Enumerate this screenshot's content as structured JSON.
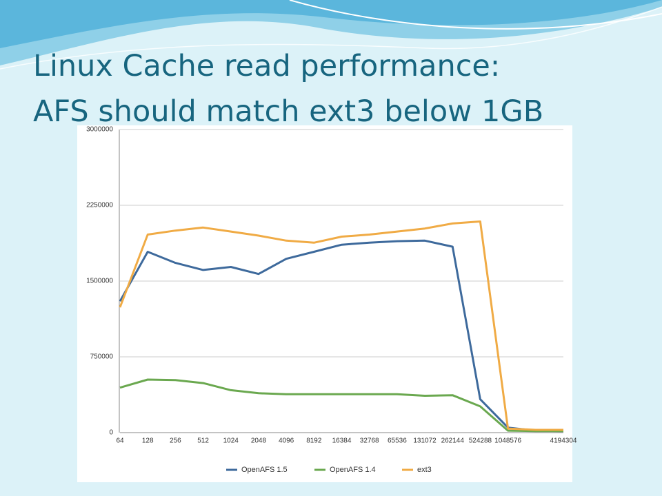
{
  "chart_data": {
    "type": "line",
    "title": [
      "Linux Cache read performance:",
      "AFS should match ext3 below 1GB"
    ],
    "categories": [
      "64",
      "128",
      "256",
      "512",
      "1024",
      "2048",
      "4096",
      "8192",
      "16384",
      "32768",
      "65536",
      "131072",
      "262144",
      "524288",
      "1048576",
      null,
      "4194304"
    ],
    "series": [
      {
        "name": "OpenAFS 1.5",
        "color": "#3e6a9c",
        "values": [
          1300000,
          1790000,
          1680000,
          1610000,
          1640000,
          1570000,
          1720000,
          1790000,
          1860000,
          1880000,
          1895000,
          1900000,
          1840000,
          330000,
          50000,
          20000,
          15000
        ]
      },
      {
        "name": "OpenAFS 1.4",
        "color": "#6aa84f",
        "values": [
          445000,
          525000,
          520000,
          490000,
          420000,
          390000,
          380000,
          380000,
          380000,
          380000,
          380000,
          365000,
          370000,
          260000,
          20000,
          15000,
          15000
        ]
      },
      {
        "name": "ext3",
        "color": "#f0ab45",
        "values": [
          1240000,
          1960000,
          2000000,
          2030000,
          1990000,
          1950000,
          1900000,
          1880000,
          1940000,
          1960000,
          1990000,
          2020000,
          2070000,
          2090000,
          40000,
          27000,
          27000
        ]
      }
    ],
    "ylim": [
      0,
      3000000
    ],
    "yticks": [
      0,
      750000,
      1500000,
      2250000,
      3000000
    ],
    "grid": true,
    "legend": "bottom"
  }
}
